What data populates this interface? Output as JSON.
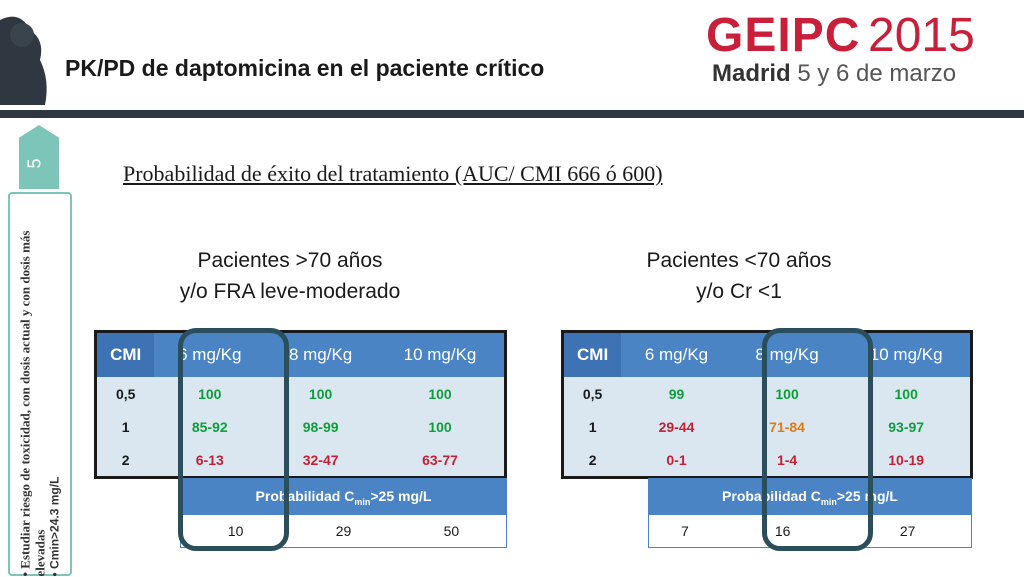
{
  "header": {
    "title": "PK/PD de daptomicina en el paciente crítico",
    "logo_main": "GEIPC",
    "logo_year": "2015",
    "logo_city": "Madrid",
    "logo_date": "5 y 6 de marzo"
  },
  "slide_number": "5",
  "side_notes": [
    "Estudiar riesgo de toxicidad, con dosis actual y con dosis más elevadas",
    "Cmin>24.3 mg/L"
  ],
  "subtitle": "Probabilidad de éxito del tratamiento (AUC/ CMI 666 ó 600)",
  "left": {
    "title_line1": "Pacientes >70 años",
    "title_line2": "y/o FRA leve-moderado",
    "headers": [
      "CMI",
      "6 mg/Kg",
      "8 mg/Kg",
      "10 mg/Kg"
    ],
    "rows": [
      [
        "0,5",
        "100",
        "100",
        "100"
      ],
      [
        "1",
        "85-92",
        "98-99",
        "100"
      ],
      [
        "2",
        "6-13",
        "32-47",
        "63-77"
      ]
    ],
    "prob_header_a": "Probabilidad C",
    "prob_header_sub": "min",
    "prob_header_b": ">25 mg/L",
    "prob_values": [
      "10",
      "29",
      "50"
    ]
  },
  "right": {
    "title_line1": "Pacientes <70 años",
    "title_line2": "y/o Cr <1",
    "headers": [
      "CMI",
      "6 mg/Kg",
      "8 mg/Kg",
      "10 mg/Kg"
    ],
    "rows": [
      [
        "0,5",
        "99",
        "100",
        "100"
      ],
      [
        "1",
        "29-44",
        "71-84",
        "93-97"
      ],
      [
        "2",
        "0-1",
        "1-4",
        "10-19"
      ]
    ],
    "prob_header_a": "Probabilidad C",
    "prob_header_sub": "min",
    "prob_header_b": ">25 mg/L",
    "prob_values": [
      "7",
      "16",
      "27"
    ]
  },
  "colors": {
    "header_blue": "#4a84c4",
    "cell_bg": "#dbe7f0",
    "green": "#0f9d3c",
    "red": "#c41f35",
    "orange": "#e07a10",
    "brand_red": "#c8203a",
    "teal": "#7ec5b9"
  }
}
